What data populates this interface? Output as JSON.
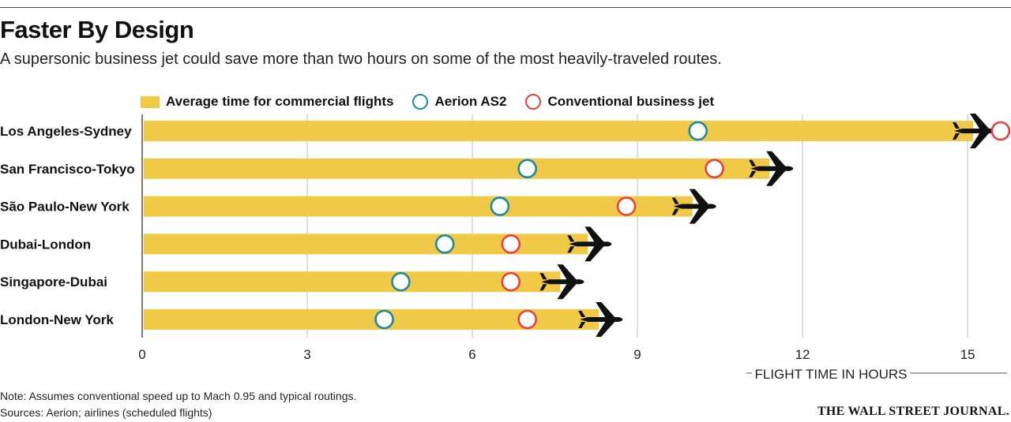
{
  "header": {
    "title": "Faster By Design",
    "subtitle": "A supersonic business jet could save more than two hours on some of the most heavily-traveled routes."
  },
  "legend": {
    "commercial_label": "Average time for commercial flights",
    "aerion_label": "Aerion AS2",
    "conventional_label": "Conventional business jet"
  },
  "colors": {
    "bar": "#f0c947",
    "aerion": "#1a8aa3",
    "conventional": "#e8413b",
    "grid": "#bdbdbd",
    "plane": "#111111"
  },
  "chart_data": {
    "type": "bar",
    "orientation": "horizontal",
    "title": "Faster By Design",
    "xlabel": "FLIGHT TIME IN HOURS",
    "xlim": [
      0,
      15.6
    ],
    "xticks": [
      0,
      3,
      6,
      9,
      12,
      15
    ],
    "grid": true,
    "categories": [
      "Los Angeles-Sydney",
      "San Francisco-Tokyo",
      "São Paulo-New York",
      "Dubai-London",
      "Singapore-Dubai",
      "London-New York"
    ],
    "series": [
      {
        "name": "Average time for commercial flights",
        "kind": "bar",
        "values": [
          15.1,
          11.4,
          10.0,
          8.1,
          7.6,
          8.3
        ]
      },
      {
        "name": "Aerion AS2",
        "kind": "marker",
        "values": [
          10.1,
          7.0,
          6.5,
          5.5,
          4.7,
          4.4
        ]
      },
      {
        "name": "Conventional business jet",
        "kind": "marker",
        "values": [
          15.6,
          10.4,
          8.8,
          6.7,
          6.7,
          7.0
        ]
      }
    ]
  },
  "footer": {
    "note": "Note: Assumes conventional speed up to Mach 0.95 and typical routings.",
    "sources": "Sources: Aerion; airlines (scheduled flights)",
    "brand": "THE WALL STREET JOURNAL."
  }
}
